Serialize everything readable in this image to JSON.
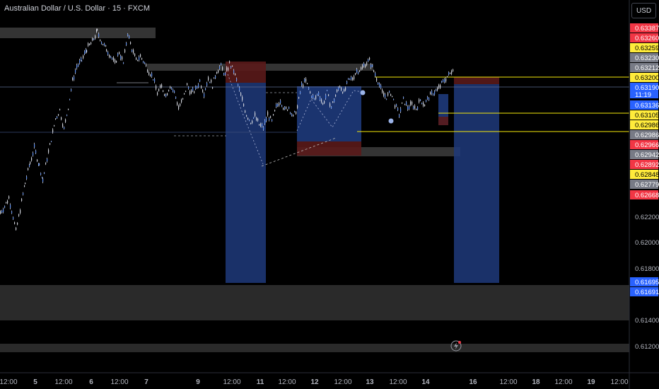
{
  "header": {
    "title": "Australian Dollar / U.S. Dollar · 15 · FXCM",
    "currency": "USD"
  },
  "colors": {
    "background": "#000000",
    "candle": "#d1d4dc",
    "blue_zone": "#1e3a7b",
    "red_zone": "#5a1a1a",
    "gray_zone": "#3a3a3a",
    "yellow_line": "#f5e90a",
    "blue_label": "#2962ff",
    "red_label": "#f23645",
    "yellow_label": "#ffeb3b",
    "gray_label": "#787b86"
  },
  "chart_data": {
    "type": "candlestick",
    "ylim": [
      0.6108,
      0.6349
    ],
    "xlim": [
      0,
      932
    ],
    "y_ticks": [
      "0.62200",
      "0.62000",
      "0.61800",
      "0.61400",
      "0.61200"
    ],
    "x_ticks": [
      {
        "label": "12:00",
        "x": 12
      },
      {
        "label": "5",
        "x": 50
      },
      {
        "label": "12:00",
        "x": 90
      },
      {
        "label": "6",
        "x": 129
      },
      {
        "label": "12:00",
        "x": 169
      },
      {
        "label": "7",
        "x": 207
      },
      {
        "label": "9",
        "x": 280
      },
      {
        "label": "12:00",
        "x": 328
      },
      {
        "label": "11",
        "x": 368
      },
      {
        "label": "12:00",
        "x": 406
      },
      {
        "label": "12",
        "x": 445
      },
      {
        "label": "12:00",
        "x": 485
      },
      {
        "label": "13",
        "x": 523
      },
      {
        "label": "12:00",
        "x": 563
      },
      {
        "label": "14",
        "x": 602
      },
      {
        "label": "16",
        "x": 669
      },
      {
        "label": "12:00",
        "x": 719
      },
      {
        "label": "18",
        "x": 758
      },
      {
        "label": "12:00",
        "x": 797
      },
      {
        "label": "19",
        "x": 836
      },
      {
        "label": "12:00",
        "x": 876
      }
    ],
    "price_labels": [
      {
        "value": "0.63387",
        "type": "red"
      },
      {
        "value": "0.63260",
        "type": "red"
      },
      {
        "value": "0.63259",
        "type": "yellow"
      },
      {
        "value": "0.63230",
        "type": "gray"
      },
      {
        "value": "0.63212",
        "type": "gray"
      },
      {
        "value": "0.63200",
        "type": "yellow"
      },
      {
        "value": "0.63190",
        "type": "blue",
        "sub": "11:19"
      },
      {
        "value": "0.63136",
        "type": "blue"
      },
      {
        "value": "0.63105",
        "type": "yellow"
      },
      {
        "value": "0.62986",
        "type": "yellow"
      },
      {
        "value": "0.62986",
        "type": "gray"
      },
      {
        "value": "0.62966",
        "type": "red"
      },
      {
        "value": "0.62942",
        "type": "gray"
      },
      {
        "value": "0.62892",
        "type": "red"
      },
      {
        "value": "0.62848",
        "type": "yellow"
      },
      {
        "value": "0.62779",
        "type": "gray"
      },
      {
        "value": "0.62668",
        "type": "red"
      },
      {
        "value": "0.61695",
        "type": "blue"
      },
      {
        "value": "0.61691",
        "type": "blue"
      }
    ],
    "price_path": [
      [
        0,
        0.6218
      ],
      [
        6,
        0.6222
      ],
      [
        12,
        0.6228
      ],
      [
        18,
        0.6215
      ],
      [
        22,
        0.6205
      ],
      [
        28,
        0.622
      ],
      [
        35,
        0.6238
      ],
      [
        42,
        0.6252
      ],
      [
        48,
        0.6262
      ],
      [
        55,
        0.625
      ],
      [
        60,
        0.624
      ],
      [
        66,
        0.6255
      ],
      [
        72,
        0.6268
      ],
      [
        78,
        0.6282
      ],
      [
        84,
        0.6288
      ],
      [
        90,
        0.6275
      ],
      [
        96,
        0.629
      ],
      [
        102,
        0.6308
      ],
      [
        108,
        0.6318
      ],
      [
        115,
        0.6322
      ],
      [
        122,
        0.633
      ],
      [
        130,
        0.6335
      ],
      [
        137,
        0.6342
      ],
      [
        143,
        0.6335
      ],
      [
        150,
        0.633
      ],
      [
        156,
        0.6325
      ],
      [
        162,
        0.632
      ],
      [
        168,
        0.6328
      ],
      [
        174,
        0.632
      ],
      [
        180,
        0.6341
      ],
      [
        186,
        0.633
      ],
      [
        192,
        0.6322
      ],
      [
        198,
        0.6325
      ],
      [
        204,
        0.632
      ],
      [
        210,
        0.6315
      ],
      [
        216,
        0.631
      ],
      [
        222,
        0.63
      ],
      [
        228,
        0.6304
      ],
      [
        234,
        0.6298
      ],
      [
        240,
        0.6305
      ],
      [
        246,
        0.63
      ],
      [
        252,
        0.629
      ],
      [
        258,
        0.6295
      ],
      [
        264,
        0.6305
      ],
      [
        270,
        0.63
      ],
      [
        276,
        0.6302
      ],
      [
        282,
        0.6308
      ],
      [
        288,
        0.63
      ],
      [
        294,
        0.631
      ],
      [
        300,
        0.6305
      ],
      [
        306,
        0.6315
      ],
      [
        312,
        0.6318
      ],
      [
        318,
        0.6312
      ],
      [
        324,
        0.632
      ],
      [
        330,
        0.6315
      ],
      [
        336,
        0.6305
      ],
      [
        342,
        0.6295
      ],
      [
        348,
        0.6285
      ],
      [
        354,
        0.628
      ],
      [
        360,
        0.6284
      ],
      [
        366,
        0.6278
      ],
      [
        372,
        0.6276
      ],
      [
        378,
        0.6285
      ],
      [
        384,
        0.628
      ],
      [
        390,
        0.629
      ],
      [
        396,
        0.6295
      ],
      [
        402,
        0.6288
      ],
      [
        408,
        0.629
      ],
      [
        414,
        0.6283
      ],
      [
        420,
        0.629
      ],
      [
        426,
        0.6305
      ],
      [
        432,
        0.6308
      ],
      [
        438,
        0.63
      ],
      [
        444,
        0.6295
      ],
      [
        450,
        0.63
      ],
      [
        456,
        0.6292
      ],
      [
        462,
        0.63
      ],
      [
        468,
        0.629
      ],
      [
        474,
        0.6298
      ],
      [
        480,
        0.6305
      ],
      [
        486,
        0.63
      ],
      [
        492,
        0.6308
      ],
      [
        498,
        0.631
      ],
      [
        504,
        0.6315
      ],
      [
        510,
        0.6316
      ],
      [
        516,
        0.632
      ],
      [
        522,
        0.6322
      ],
      [
        528,
        0.6315
      ],
      [
        534,
        0.6308
      ],
      [
        540,
        0.63
      ],
      [
        546,
        0.6297
      ],
      [
        552,
        0.63
      ],
      [
        558,
        0.6292
      ],
      [
        564,
        0.6285
      ],
      [
        570,
        0.6295
      ],
      [
        576,
        0.629
      ],
      [
        582,
        0.6292
      ],
      [
        588,
        0.6289
      ],
      [
        594,
        0.6295
      ],
      [
        600,
        0.6292
      ],
      [
        606,
        0.6297
      ],
      [
        612,
        0.63
      ],
      [
        618,
        0.6302
      ],
      [
        624,
        0.6306
      ],
      [
        630,
        0.631
      ],
      [
        636,
        0.6313
      ],
      [
        642,
        0.6319
      ]
    ]
  }
}
